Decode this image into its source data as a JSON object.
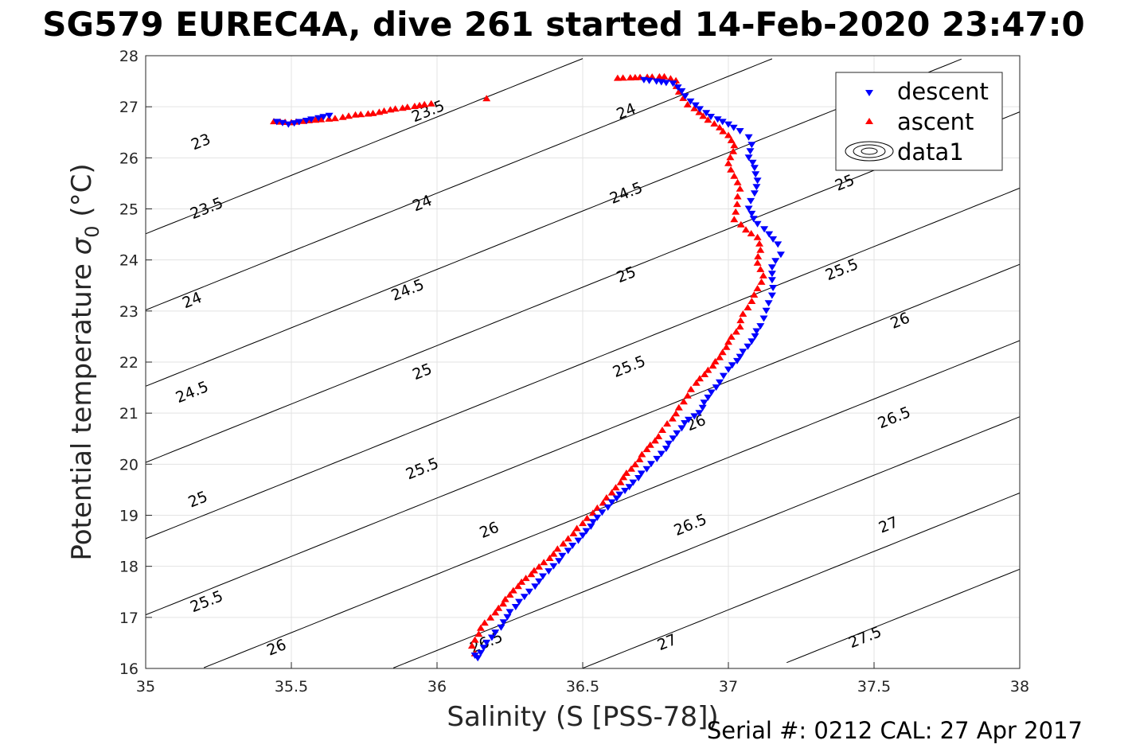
{
  "chart_data": {
    "type": "scatter",
    "title": "SG579 EUREC4A, dive 261 started 14-Feb-2020 23:47:0",
    "xlabel": "Salinity (S [PSS-78])",
    "ylabel_main": "Potential temperature ",
    "ylabel_sigma": "σ",
    "ylabel_sub": "0",
    "ylabel_unit": " (°C)",
    "footer": "Serial #: 0212  CAL: 27 Apr 2017",
    "xlim": [
      35,
      38
    ],
    "ylim": [
      16,
      28
    ],
    "x_ticks": [
      "35",
      "35.5",
      "36",
      "36.5",
      "37",
      "37.5",
      "38"
    ],
    "y_ticks": [
      "16",
      "17",
      "18",
      "19",
      "20",
      "21",
      "22",
      "23",
      "24",
      "25",
      "26",
      "27",
      "28"
    ],
    "grid": true,
    "legend_position": "top-right",
    "legend": [
      {
        "label": "descent",
        "color": "#0000ff",
        "marker": "triangle-down"
      },
      {
        "label": "ascent",
        "color": "#ff0000",
        "marker": "triangle-up"
      },
      {
        "label": "data1",
        "color": "#000000",
        "marker": "contour"
      }
    ],
    "contour_levels": [
      23,
      23.5,
      24,
      24.5,
      25,
      25.5,
      26,
      26.5,
      27,
      27.5
    ],
    "contour_labels": [
      {
        "text": "23",
        "x": 35.19,
        "y": 26.3
      },
      {
        "text": "23.5",
        "x": 35.97,
        "y": 26.9
      },
      {
        "text": "23.5",
        "x": 35.21,
        "y": 25.0
      },
      {
        "text": "24",
        "x": 35.95,
        "y": 25.1
      },
      {
        "text": "24",
        "x": 36.65,
        "y": 26.9
      },
      {
        "text": "24",
        "x": 35.16,
        "y": 23.2
      },
      {
        "text": "24.5",
        "x": 35.9,
        "y": 23.4
      },
      {
        "text": "24.5",
        "x": 36.65,
        "y": 25.3
      },
      {
        "text": "24.5",
        "x": 35.16,
        "y": 21.4
      },
      {
        "text": "25",
        "x": 35.95,
        "y": 21.8
      },
      {
        "text": "25",
        "x": 36.65,
        "y": 23.7
      },
      {
        "text": "25",
        "x": 37.4,
        "y": 25.5
      },
      {
        "text": "25",
        "x": 35.18,
        "y": 19.3
      },
      {
        "text": "25.5",
        "x": 35.95,
        "y": 19.9
      },
      {
        "text": "25.5",
        "x": 36.66,
        "y": 21.9
      },
      {
        "text": "25.5",
        "x": 37.39,
        "y": 23.8
      },
      {
        "text": "25.5",
        "x": 35.21,
        "y": 17.3
      },
      {
        "text": "26",
        "x": 35.45,
        "y": 16.4
      },
      {
        "text": "26",
        "x": 36.18,
        "y": 18.7
      },
      {
        "text": "26",
        "x": 36.89,
        "y": 20.8
      },
      {
        "text": "26",
        "x": 37.59,
        "y": 22.8
      },
      {
        "text": "26.5",
        "x": 36.17,
        "y": 16.5
      },
      {
        "text": "26.5",
        "x": 36.87,
        "y": 18.8
      },
      {
        "text": "26.5",
        "x": 37.57,
        "y": 20.9
      },
      {
        "text": "27",
        "x": 36.79,
        "y": 16.5
      },
      {
        "text": "27",
        "x": 37.55,
        "y": 18.8
      },
      {
        "text": "27.5",
        "x": 37.47,
        "y": 16.6
      }
    ],
    "series": [
      {
        "name": "descent",
        "color": "#0000ff",
        "marker": "triangle-down",
        "points": [
          [
            35.45,
            26.7
          ],
          [
            35.47,
            26.68
          ],
          [
            35.49,
            26.65
          ],
          [
            35.63,
            26.82
          ],
          [
            36.71,
            27.52
          ],
          [
            36.81,
            27.45
          ],
          [
            36.84,
            27.3
          ],
          [
            36.87,
            27.1
          ],
          [
            36.94,
            26.8
          ],
          [
            37.0,
            26.65
          ],
          [
            37.04,
            26.52
          ],
          [
            37.07,
            26.4
          ],
          [
            37.08,
            26.25
          ],
          [
            37.07,
            26.0
          ],
          [
            37.09,
            25.8
          ],
          [
            37.1,
            25.55
          ],
          [
            37.09,
            25.3
          ],
          [
            37.07,
            25.0
          ],
          [
            37.1,
            24.7
          ],
          [
            37.14,
            24.5
          ],
          [
            37.17,
            24.3
          ],
          [
            37.18,
            24.1
          ],
          [
            37.15,
            23.85
          ],
          [
            37.15,
            23.6
          ],
          [
            37.15,
            23.3
          ],
          [
            37.13,
            23.0
          ],
          [
            37.11,
            22.7
          ],
          [
            37.08,
            22.4
          ],
          [
            37.04,
            22.1
          ],
          [
            37.0,
            21.85
          ],
          [
            36.97,
            21.6
          ],
          [
            36.93,
            21.3
          ],
          [
            36.9,
            21.0
          ],
          [
            36.85,
            20.8
          ],
          [
            36.81,
            20.5
          ],
          [
            36.77,
            20.2
          ],
          [
            36.72,
            19.9
          ],
          [
            36.66,
            19.55
          ],
          [
            36.6,
            19.25
          ],
          [
            36.55,
            18.95
          ],
          [
            36.5,
            18.6
          ],
          [
            36.45,
            18.3
          ],
          [
            36.4,
            18.0
          ],
          [
            36.35,
            17.7
          ],
          [
            36.3,
            17.4
          ],
          [
            36.25,
            17.1
          ],
          [
            36.22,
            16.8
          ],
          [
            36.17,
            16.5
          ],
          [
            36.15,
            16.3
          ],
          [
            36.14,
            16.2
          ],
          [
            36.13,
            16.25
          ]
        ]
      },
      {
        "name": "ascent",
        "color": "#ff0000",
        "marker": "triangle-up",
        "points": [
          [
            35.44,
            26.72
          ],
          [
            35.5,
            26.7
          ],
          [
            35.56,
            26.74
          ],
          [
            35.65,
            26.78
          ],
          [
            35.72,
            26.85
          ],
          [
            35.78,
            26.88
          ],
          [
            35.84,
            26.95
          ],
          [
            35.98,
            27.07
          ],
          [
            36.17,
            27.17
          ],
          [
            36.62,
            27.57
          ],
          [
            36.78,
            27.6
          ],
          [
            36.82,
            27.52
          ],
          [
            36.83,
            27.3
          ],
          [
            36.86,
            27.05
          ],
          [
            36.9,
            26.9
          ],
          [
            36.93,
            26.75
          ],
          [
            36.97,
            26.6
          ],
          [
            37.0,
            26.45
          ],
          [
            37.02,
            26.25
          ],
          [
            37.0,
            25.9
          ],
          [
            37.02,
            25.65
          ],
          [
            37.04,
            25.4
          ],
          [
            37.03,
            25.1
          ],
          [
            37.02,
            24.8
          ],
          [
            37.06,
            24.6
          ],
          [
            37.1,
            24.45
          ],
          [
            37.11,
            24.2
          ],
          [
            37.1,
            23.95
          ],
          [
            37.12,
            23.7
          ],
          [
            37.1,
            23.45
          ],
          [
            37.08,
            23.2
          ],
          [
            37.05,
            22.95
          ],
          [
            37.04,
            22.7
          ],
          [
            37.0,
            22.4
          ],
          [
            36.97,
            22.1
          ],
          [
            36.93,
            21.85
          ],
          [
            36.89,
            21.6
          ],
          [
            36.86,
            21.35
          ],
          [
            36.82,
            21.0
          ],
          [
            36.79,
            20.8
          ],
          [
            36.76,
            20.55
          ],
          [
            36.72,
            20.3
          ],
          [
            36.68,
            20.0
          ],
          [
            36.64,
            19.75
          ],
          [
            36.6,
            19.45
          ],
          [
            36.55,
            19.15
          ],
          [
            36.5,
            18.85
          ],
          [
            36.45,
            18.55
          ],
          [
            36.4,
            18.25
          ],
          [
            36.35,
            18.0
          ],
          [
            36.29,
            17.7
          ],
          [
            36.25,
            17.45
          ],
          [
            36.2,
            17.1
          ],
          [
            36.15,
            16.8
          ],
          [
            36.12,
            16.45
          ],
          [
            36.13,
            16.3
          ]
        ]
      }
    ]
  }
}
